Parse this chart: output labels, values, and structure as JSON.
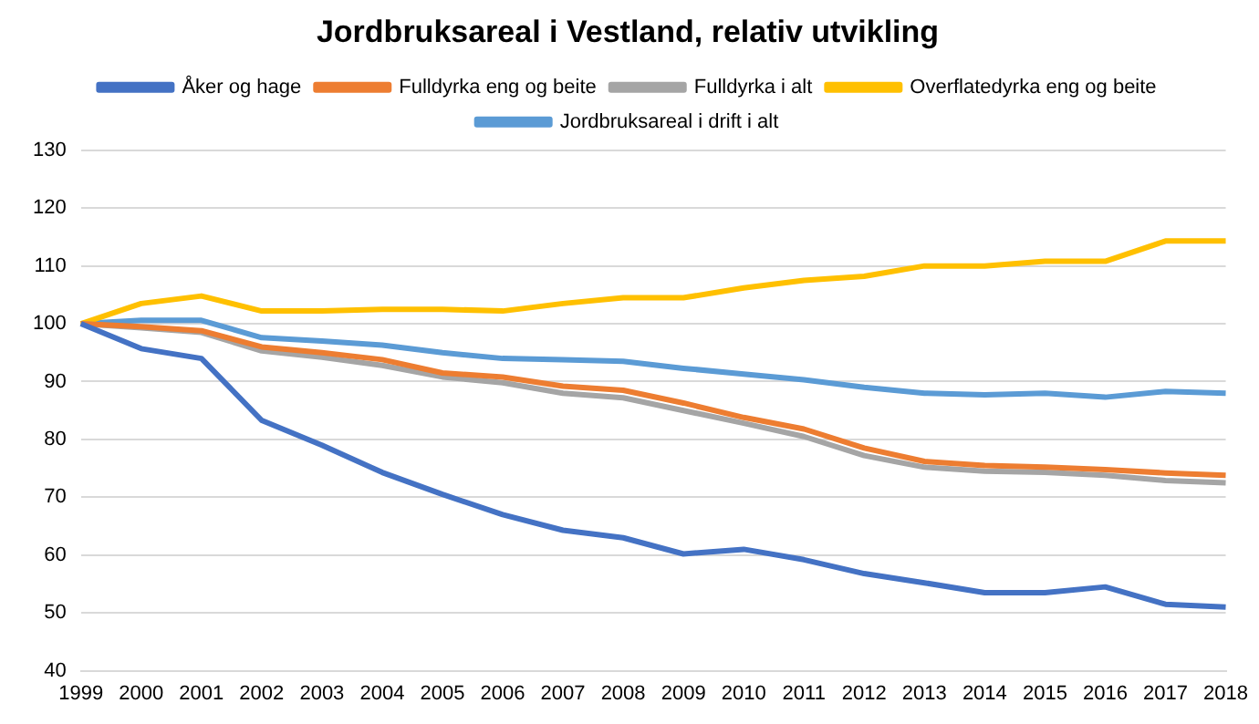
{
  "chart_data": {
    "type": "line",
    "title": "Jordbruksareal i Vestland, relativ utvikling",
    "categories": [
      "1999",
      "2000",
      "2001",
      "2002",
      "2003",
      "2004",
      "2005",
      "2006",
      "2007",
      "2008",
      "2009",
      "2010",
      "2011",
      "2012",
      "2013",
      "2014",
      "2015",
      "2016",
      "2017",
      "2018"
    ],
    "series": [
      {
        "name": "Åker og hage",
        "color": "#4472c4",
        "values": [
          100,
          95.7,
          94,
          83.3,
          79,
          74.3,
          70.5,
          67,
          64.3,
          63,
          60.2,
          61,
          59.2,
          56.8,
          55.2,
          53.5,
          53.5,
          54.5,
          51.5,
          51
        ]
      },
      {
        "name": "Fulldyrka eng og beite",
        "color": "#ed7d31",
        "values": [
          100,
          99.5,
          98.8,
          96,
          95,
          93.8,
          91.5,
          90.8,
          89.2,
          88.5,
          86.3,
          83.8,
          81.8,
          78.5,
          76.2,
          75.5,
          75.2,
          74.8,
          74.2,
          73.8
        ]
      },
      {
        "name": "Fulldyrka i alt",
        "color": "#a5a5a5",
        "values": [
          100,
          99.3,
          98.5,
          95.3,
          94.2,
          92.8,
          90.8,
          89.8,
          88,
          87.2,
          85,
          82.8,
          80.5,
          77.2,
          75.2,
          74.5,
          74.3,
          73.8,
          72.9,
          72.5
        ]
      },
      {
        "name": "Overflatedyrka eng og beite",
        "color": "#ffc000",
        "values": [
          100,
          103.5,
          104.8,
          102.2,
          102.2,
          102.5,
          102.5,
          102.2,
          103.5,
          104.5,
          104.5,
          106.2,
          107.5,
          108.2,
          110,
          110,
          110.8,
          110.8,
          114.3,
          114.3
        ]
      },
      {
        "name": "Jordbruksareal i drift i alt",
        "color": "#5b9bd5",
        "values": [
          100,
          100.6,
          100.6,
          97.6,
          97,
          96.3,
          95,
          94,
          93.8,
          93.5,
          92.3,
          91.3,
          90.3,
          89,
          88,
          87.7,
          88,
          87.3,
          88.3,
          88
        ]
      }
    ],
    "ylim": [
      40,
      130
    ],
    "yticks": [
      40,
      50,
      60,
      70,
      80,
      90,
      100,
      110,
      120,
      130
    ],
    "grid": "y",
    "legend": "top",
    "marker": "none",
    "line_style": "solid"
  }
}
